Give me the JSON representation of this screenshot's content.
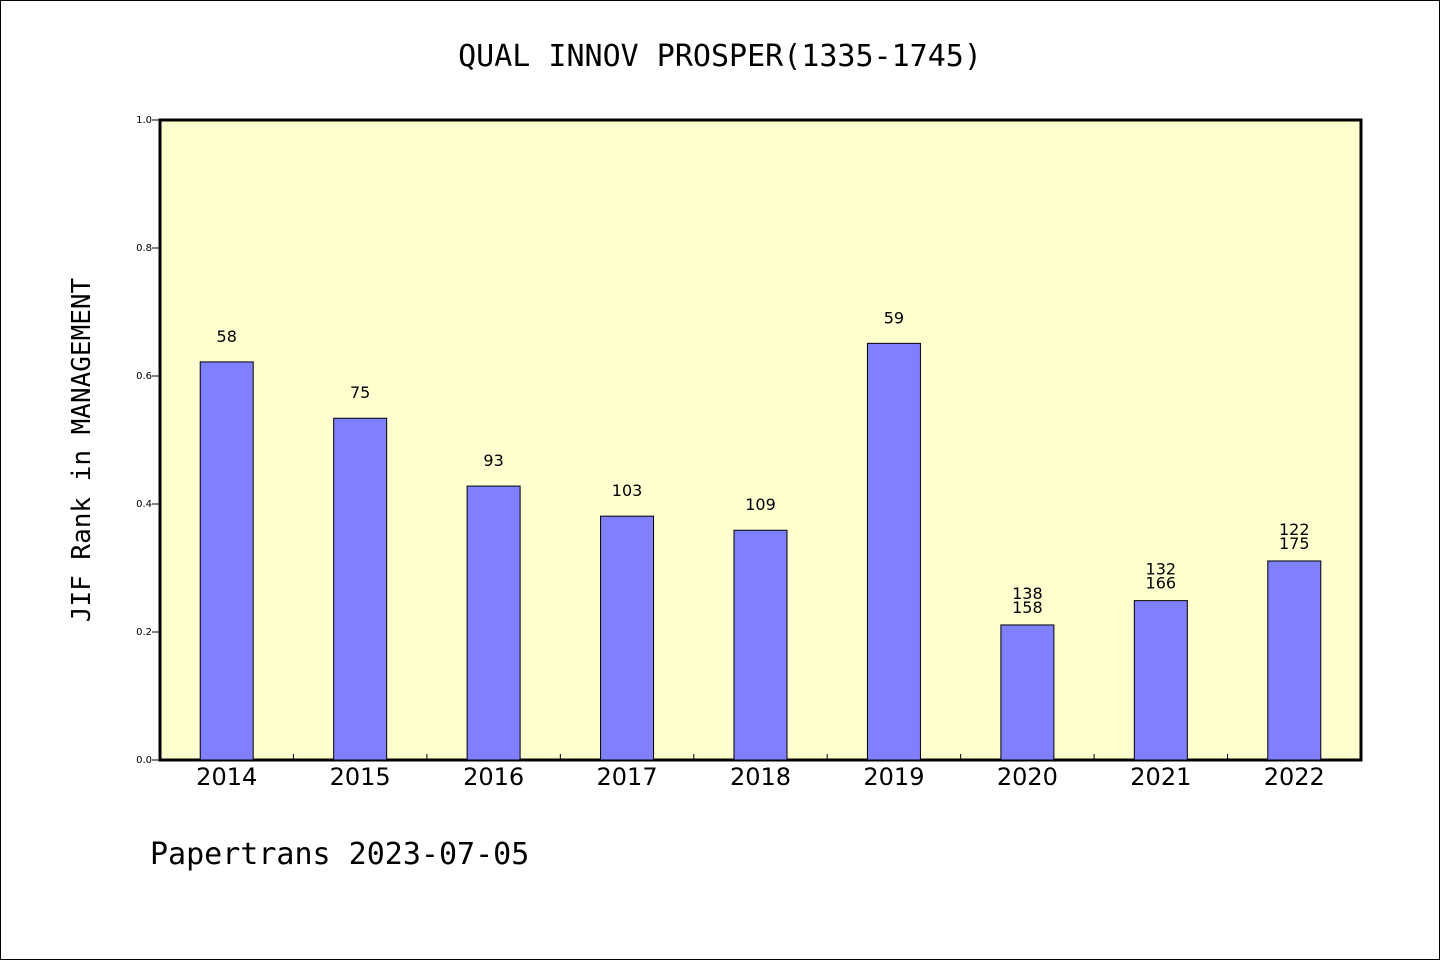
{
  "chart_data": {
    "type": "bar",
    "title": "QUAL INNOV PROSPER(1335-1745)",
    "ylabel": "JIF Rank in MANAGEMENT",
    "xlabel": "",
    "ylim": [
      0,
      1.0
    ],
    "yticks": [
      "0.0",
      "0.2",
      "0.4",
      "0.6",
      "0.8",
      "1.0"
    ],
    "categories": [
      "2014",
      "2015",
      "2016",
      "2017",
      "2018",
      "2019",
      "2020",
      "2021",
      "2022"
    ],
    "values": [
      0.622,
      0.534,
      0.428,
      0.381,
      0.359,
      0.651,
      0.211,
      0.249,
      0.311
    ],
    "labels": [
      [
        "58"
      ],
      [
        "75"
      ],
      [
        "93"
      ],
      [
        "103"
      ],
      [
        "109"
      ],
      [
        "59"
      ],
      [
        "138",
        "158"
      ],
      [
        "132",
        "166"
      ],
      [
        "122",
        "175"
      ]
    ],
    "bar_color": "#8080ff",
    "plot_background": "#ffffd0",
    "grid": false
  },
  "footer": {
    "text": "Papertrans 2023-07-05"
  }
}
